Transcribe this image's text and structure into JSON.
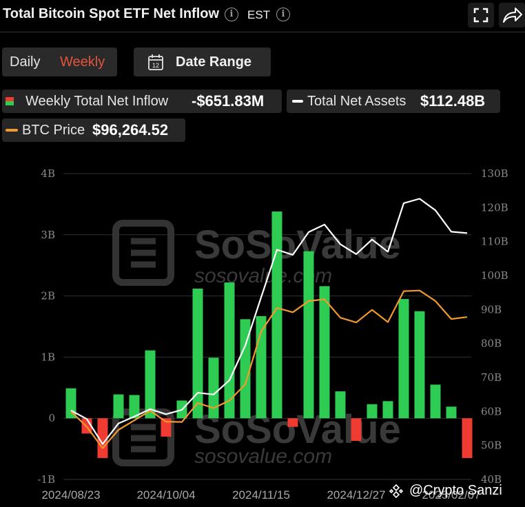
{
  "header": {
    "title": "Total Bitcoin Spot ETF Net Inflow",
    "timezone": "EST"
  },
  "tabs": [
    {
      "label": "Daily",
      "active": false
    },
    {
      "label": "Weekly",
      "active": true
    }
  ],
  "date_range": {
    "label": "Date Range",
    "icon_text": "12"
  },
  "summary": {
    "net_inflow": {
      "label": "Weekly Total Net Inflow",
      "value": "-$651.83M"
    },
    "net_assets": {
      "label": "Total Net Assets",
      "value": "$112.48B"
    },
    "btc_price": {
      "label": "BTC Price",
      "value": "$96,264.52"
    }
  },
  "watermark": {
    "brand": "SoSoValue",
    "site": "sosovalue.com"
  },
  "credit": "@Crypto Sanzi",
  "colors": {
    "positive_bar": "#2ecc52",
    "negative_bar": "#ef3b32",
    "assets_line": "#ffffff",
    "price_line": "#f39a2e",
    "active_tab": "#e5533d",
    "grid": "#333333"
  },
  "chart_data": {
    "type": "bar",
    "left_axis": {
      "ticks": [
        "4B",
        "3B",
        "2B",
        "1B",
        "0",
        "-1B"
      ],
      "ylim": [
        -1,
        4
      ]
    },
    "right_axis": {
      "ticks": [
        "130B",
        "120B",
        "110B",
        "100B",
        "90B",
        "80B",
        "70B",
        "60B",
        "50B",
        "40B"
      ],
      "ylim": [
        40,
        130
      ]
    },
    "x_tick_labels": [
      "2024/08/23",
      "2024/10/04",
      "2024/11/15",
      "2024/12/27",
      "2025/02/07"
    ],
    "bar_series": {
      "name": "Weekly Total Net Inflow",
      "values": [
        0.49,
        -0.25,
        -0.65,
        0.39,
        0.38,
        1.11,
        -0.3,
        0.29,
        2.12,
        0.99,
        2.22,
        1.62,
        1.67,
        3.38,
        -0.14,
        2.73,
        2.16,
        0.44,
        -0.37,
        0.23,
        0.28,
        1.95,
        1.75,
        0.55,
        0.19,
        -0.65
      ]
    },
    "line_series": [
      {
        "name": "Total Net Assets",
        "axis": "right",
        "values": [
          60.3,
          57.8,
          50.4,
          56.5,
          58.5,
          60.7,
          59.2,
          60.5,
          65.5,
          65.0,
          69.2,
          79.4,
          93.6,
          107.6,
          106.1,
          112.8,
          115.0,
          109.2,
          106.3,
          110.6,
          107.0,
          121.3,
          122.6,
          119.2,
          112.9,
          112.48
        ]
      },
      {
        "name": "BTC Price",
        "axis": "right",
        "values": [
          60.0,
          55.5,
          49.2,
          54.6,
          57.4,
          60.2,
          57.0,
          56.9,
          62.5,
          61.0,
          63.2,
          68.0,
          83.5,
          90.5,
          89.2,
          92.5,
          93.0,
          87.6,
          86.2,
          89.9,
          86.3,
          95.4,
          95.6,
          92.5,
          87.2,
          87.8
        ]
      }
    ]
  }
}
